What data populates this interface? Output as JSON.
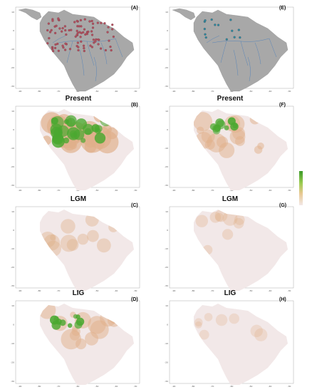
{
  "figure": {
    "panel_letters": [
      "(A)",
      "(B)",
      "(C)",
      "(D)",
      "(E)",
      "(F)",
      "(G)",
      "(H)"
    ],
    "period_labels": [
      "Present",
      "LGM",
      "LIG"
    ],
    "left_column": {
      "point_color": "#b0505f",
      "panels": [
        {
          "letter": "(A)",
          "kind": "occurrences"
        },
        {
          "letter": "(B)",
          "kind": "suitability",
          "period": "Present",
          "intensity": 0.95
        },
        {
          "letter": "(C)",
          "kind": "suitability",
          "period": "LGM",
          "intensity": 0.35
        },
        {
          "letter": "(D)",
          "kind": "suitability",
          "period": "LIG",
          "intensity": 0.55
        }
      ]
    },
    "right_column": {
      "point_color": "#2a8aa0",
      "panels": [
        {
          "letter": "(E)",
          "kind": "occurrences"
        },
        {
          "letter": "(F)",
          "kind": "suitability",
          "period": "Present",
          "intensity": 0.55
        },
        {
          "letter": "(G)",
          "kind": "suitability",
          "period": "LGM",
          "intensity": 0.18
        },
        {
          "letter": "(H)",
          "kind": "suitability",
          "period": "LIG",
          "intensity": 0.1
        }
      ]
    },
    "colors": {
      "map_gray": "#a8a8a8",
      "ocean": "#ffffff",
      "rivers": "#5a86b8",
      "low": "#f2e8e8",
      "mid": "#e0b08a",
      "high": "#4aa830"
    }
  }
}
